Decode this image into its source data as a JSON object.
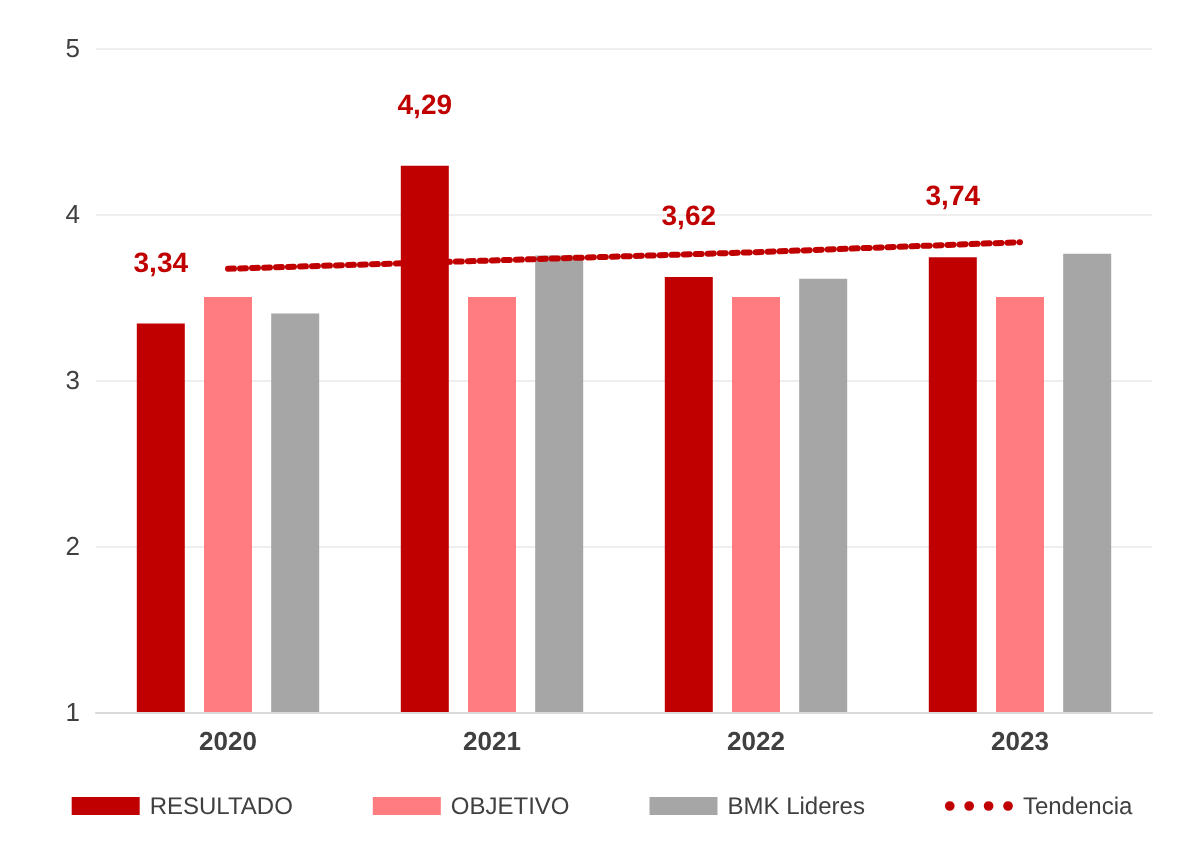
{
  "chart_data": {
    "type": "bar",
    "categories": [
      "2020",
      "2021",
      "2022",
      "2023"
    ],
    "series": [
      {
        "name": "RESULTADO",
        "color": "#c00000",
        "values": [
          3.34,
          4.29,
          3.62,
          3.74
        ],
        "value_labels": [
          "3,34",
          "4,29",
          "3,62",
          "3,74"
        ]
      },
      {
        "name": "OBJETIVO",
        "color": "#ff7c80",
        "values": [
          3.5,
          3.5,
          3.5,
          3.5
        ]
      },
      {
        "name": "BMK Lideres",
        "color": "#a6a6a6",
        "values": [
          3.4,
          3.75,
          3.61,
          3.76
        ]
      },
      {
        "name": "Tendencia",
        "type": "line",
        "color": "#c00000",
        "line_style": "dotted",
        "marker": "none",
        "values": [
          3.67,
          3.72,
          3.77,
          3.83
        ]
      }
    ],
    "ylim": [
      1,
      5
    ],
    "yticks": [
      1,
      2,
      3,
      4,
      5
    ],
    "grid": "y",
    "legend": "bottom"
  }
}
